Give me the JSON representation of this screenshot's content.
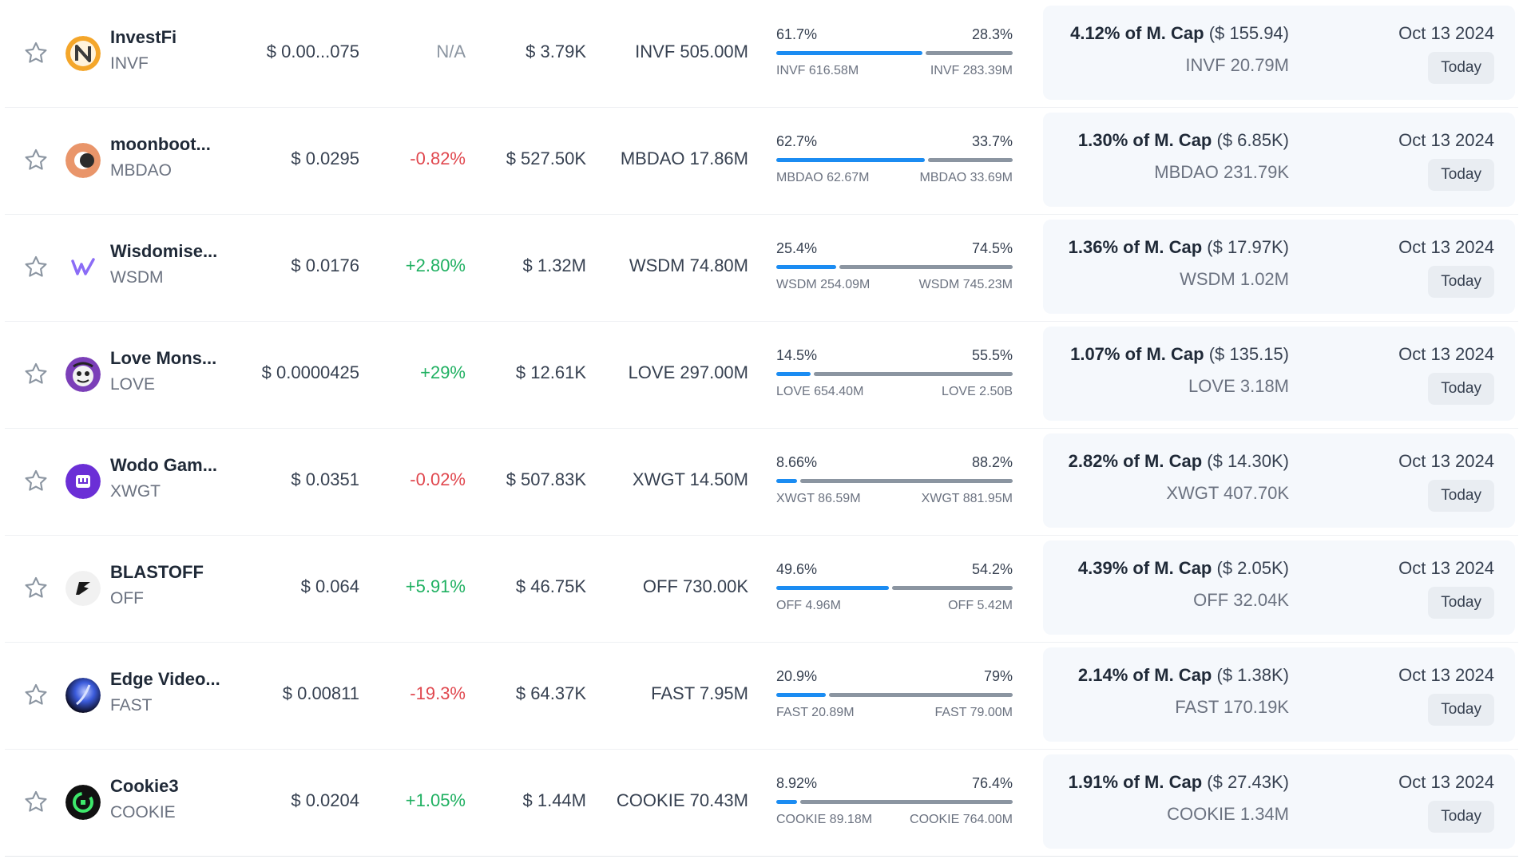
{
  "rows": [
    {
      "name": "InvestFi",
      "symbol": "INVF",
      "logo": "investfi-logo",
      "price": "$ 0.00...075",
      "change": "N/A",
      "change_type": "na",
      "volume": "$ 3.79K",
      "circulating": "INVF 505.00M",
      "left_pct": "61.7%",
      "right_pct": "28.3%",
      "left_frac": 0.617,
      "right_frac": 0.283,
      "left_amt": "INVF 616.58M",
      "right_amt": "INVF 283.39M",
      "mcap_pct": "4.12% of M. Cap",
      "mcap_usd": "($ 155.94)",
      "unlock_amt": "INVF 20.79M",
      "date": "Oct 13 2024",
      "badge": "Today"
    },
    {
      "name": "moonboot...",
      "symbol": "MBDAO",
      "logo": "moonboots-logo",
      "price": "$ 0.0295",
      "change": "-0.82%",
      "change_type": "neg",
      "volume": "$ 527.50K",
      "circulating": "MBDAO 17.86M",
      "left_pct": "62.7%",
      "right_pct": "33.7%",
      "left_frac": 0.627,
      "right_frac": 0.337,
      "left_amt": "MBDAO 62.67M",
      "right_amt": "MBDAO 33.69M",
      "mcap_pct": "1.30% of M. Cap",
      "mcap_usd": "($ 6.85K)",
      "unlock_amt": "MBDAO 231.79K",
      "date": "Oct 13 2024",
      "badge": "Today"
    },
    {
      "name": "Wisdomise...",
      "symbol": "WSDM",
      "logo": "wisdomise-logo",
      "price": "$ 0.0176",
      "change": "+2.80%",
      "change_type": "pos",
      "volume": "$ 1.32M",
      "circulating": "WSDM 74.80M",
      "left_pct": "25.4%",
      "right_pct": "74.5%",
      "left_frac": 0.254,
      "right_frac": 0.745,
      "left_amt": "WSDM 254.09M",
      "right_amt": "WSDM 745.23M",
      "mcap_pct": "1.36% of M. Cap",
      "mcap_usd": "($ 17.97K)",
      "unlock_amt": "WSDM 1.02M",
      "date": "Oct 13 2024",
      "badge": "Today"
    },
    {
      "name": "Love Mons...",
      "symbol": "LOVE",
      "logo": "love-monster-logo",
      "price": "$ 0.0000425",
      "change": "+29%",
      "change_type": "pos",
      "volume": "$ 12.61K",
      "circulating": "LOVE 297.00M",
      "left_pct": "14.5%",
      "right_pct": "55.5%",
      "left_frac": 0.145,
      "right_frac": 0.555,
      "left_amt": "LOVE 654.40M",
      "right_amt": "LOVE 2.50B",
      "mcap_pct": "1.07% of M. Cap",
      "mcap_usd": "($ 135.15)",
      "unlock_amt": "LOVE 3.18M",
      "date": "Oct 13 2024",
      "badge": "Today"
    },
    {
      "name": "Wodo Gam...",
      "symbol": "XWGT",
      "logo": "wodo-gaming-logo",
      "price": "$ 0.0351",
      "change": "-0.02%",
      "change_type": "neg",
      "volume": "$ 507.83K",
      "circulating": "XWGT 14.50M",
      "left_pct": "8.66%",
      "right_pct": "88.2%",
      "left_frac": 0.0866,
      "right_frac": 0.882,
      "left_amt": "XWGT 86.59M",
      "right_amt": "XWGT 881.95M",
      "mcap_pct": "2.82% of M. Cap",
      "mcap_usd": "($ 14.30K)",
      "unlock_amt": "XWGT 407.70K",
      "date": "Oct 13 2024",
      "badge": "Today"
    },
    {
      "name": "BLASTOFF",
      "symbol": "OFF",
      "logo": "blastoff-logo",
      "price": "$ 0.064",
      "change": "+5.91%",
      "change_type": "pos",
      "volume": "$ 46.75K",
      "circulating": "OFF 730.00K",
      "left_pct": "49.6%",
      "right_pct": "54.2%",
      "left_frac": 0.496,
      "right_frac": 0.542,
      "left_amt": "OFF 4.96M",
      "right_amt": "OFF 5.42M",
      "mcap_pct": "4.39% of M. Cap",
      "mcap_usd": "($ 2.05K)",
      "unlock_amt": "OFF 32.04K",
      "date": "Oct 13 2024",
      "badge": "Today"
    },
    {
      "name": "Edge Video...",
      "symbol": "FAST",
      "logo": "edge-video-logo",
      "price": "$ 0.00811",
      "change": "-19.3%",
      "change_type": "neg",
      "volume": "$ 64.37K",
      "circulating": "FAST 7.95M",
      "left_pct": "20.9%",
      "right_pct": "79%",
      "left_frac": 0.209,
      "right_frac": 0.79,
      "left_amt": "FAST 20.89M",
      "right_amt": "FAST 79.00M",
      "mcap_pct": "2.14% of M. Cap",
      "mcap_usd": "($ 1.38K)",
      "unlock_amt": "FAST 170.19K",
      "date": "Oct 13 2024",
      "badge": "Today"
    },
    {
      "name": "Cookie3",
      "symbol": "COOKIE",
      "logo": "cookie3-logo",
      "price": "$ 0.0204",
      "change": "+1.05%",
      "change_type": "pos",
      "volume": "$ 1.44M",
      "circulating": "COOKIE 70.43M",
      "left_pct": "8.92%",
      "right_pct": "76.4%",
      "left_frac": 0.0892,
      "right_frac": 0.764,
      "left_amt": "COOKIE 89.18M",
      "right_amt": "COOKIE 764.00M",
      "mcap_pct": "1.91% of M. Cap",
      "mcap_usd": "($ 27.43K)",
      "unlock_amt": "COOKIE 1.34M",
      "date": "Oct 13 2024",
      "badge": "Today"
    }
  ],
  "colors": {
    "unlocked_bar": "#1b8cf2",
    "locked_bar": "#8b95a1",
    "negative": "#e0474e",
    "positive": "#1fb061",
    "panel_bg": "#f5f8fc"
  }
}
